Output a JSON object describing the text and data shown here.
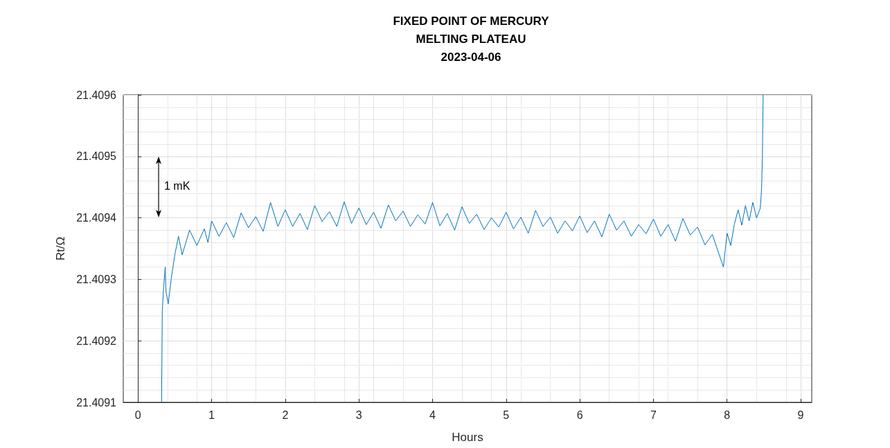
{
  "chart_data": {
    "type": "line",
    "title": "FIXED POINT OF MERCURY\nMELTING PLATEAU\n2023-04-06",
    "xlabel": "Hours",
    "ylabel": "Rt/Ω",
    "annotations": [
      "1 mK"
    ],
    "xlim": [
      -0.2,
      9.15
    ],
    "xticks": [
      0,
      1,
      2,
      3,
      4,
      5,
      6,
      7,
      8,
      9
    ],
    "ylim": [
      21.4091,
      21.4096
    ],
    "yticks": [
      21.4091,
      21.4092,
      21.4093,
      21.4094,
      21.4095,
      21.4096
    ],
    "grid": true,
    "marker": "none",
    "line_style": "solid",
    "series": [
      {
        "color": "#0072bd",
        "x": [
          0.32,
          0.33,
          0.35,
          0.37,
          0.38,
          0.41,
          0.45,
          0.5,
          0.55,
          0.6,
          0.7,
          0.8,
          0.9,
          0.95,
          1.0,
          1.1,
          1.2,
          1.3,
          1.4,
          1.5,
          1.6,
          1.7,
          1.8,
          1.9,
          2.0,
          2.1,
          2.2,
          2.3,
          2.4,
          2.5,
          2.6,
          2.7,
          2.8,
          2.9,
          3.0,
          3.1,
          3.2,
          3.3,
          3.4,
          3.5,
          3.6,
          3.7,
          3.8,
          3.9,
          4.0,
          4.1,
          4.2,
          4.3,
          4.4,
          4.5,
          4.6,
          4.7,
          4.8,
          4.9,
          5.0,
          5.1,
          5.2,
          5.3,
          5.4,
          5.5,
          5.6,
          5.7,
          5.8,
          5.9,
          6.0,
          6.1,
          6.2,
          6.3,
          6.4,
          6.5,
          6.6,
          6.7,
          6.8,
          6.9,
          7.0,
          7.1,
          7.2,
          7.3,
          7.4,
          7.5,
          7.6,
          7.7,
          7.8,
          7.95,
          8.0,
          8.05,
          8.1,
          8.15,
          8.2,
          8.25,
          8.3,
          8.35,
          8.4,
          8.45,
          8.46,
          8.47,
          8.48,
          8.49
        ],
        "values": [
          21.4091,
          21.40925,
          21.40929,
          21.40932,
          21.40928,
          21.40926,
          21.4093,
          21.40934,
          21.40937,
          21.40934,
          21.40938,
          21.409355,
          21.409382,
          21.40936,
          21.409395,
          21.40937,
          21.409392,
          21.409368,
          21.409408,
          21.409384,
          21.409402,
          21.409378,
          21.409425,
          21.409386,
          21.409413,
          21.409386,
          21.409407,
          21.409381,
          21.40942,
          21.409394,
          21.40941,
          21.409386,
          21.409426,
          21.409391,
          21.409416,
          21.409389,
          21.409409,
          21.409383,
          21.409421,
          21.409395,
          21.409411,
          21.409386,
          21.409405,
          21.40939,
          21.409425,
          21.409387,
          21.409407,
          21.40938,
          21.409418,
          21.409391,
          21.409406,
          21.409381,
          21.4094,
          21.409385,
          21.409409,
          21.409382,
          21.409401,
          21.409375,
          21.409412,
          21.409386,
          21.409401,
          21.409375,
          21.409395,
          21.409379,
          21.409403,
          21.409376,
          21.409395,
          21.409369,
          21.409406,
          21.40938,
          21.409395,
          21.40937,
          21.409389,
          21.409374,
          21.409398,
          21.40937,
          21.409389,
          21.409362,
          21.409399,
          21.409372,
          21.409385,
          21.409356,
          21.409373,
          21.40932,
          21.409375,
          21.409355,
          21.40939,
          21.409413,
          21.409388,
          21.40942,
          21.409395,
          21.409425,
          21.4094,
          21.409415,
          21.40943,
          21.409452,
          21.4095,
          21.4096
        ]
      }
    ]
  }
}
